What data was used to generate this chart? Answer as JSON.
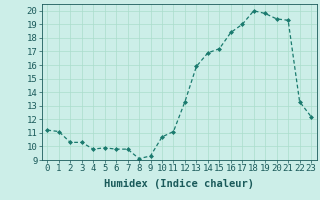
{
  "x": [
    0,
    1,
    2,
    3,
    4,
    5,
    6,
    7,
    8,
    9,
    10,
    11,
    12,
    13,
    14,
    15,
    16,
    17,
    18,
    19,
    20,
    21,
    22,
    23
  ],
  "y": [
    11.2,
    11.1,
    10.3,
    10.3,
    9.8,
    9.9,
    9.8,
    9.8,
    9.1,
    9.3,
    10.7,
    11.1,
    13.3,
    15.9,
    16.9,
    17.2,
    18.4,
    19.0,
    20.0,
    19.8,
    19.4,
    19.3,
    13.3,
    12.2
  ],
  "title": "",
  "xlabel": "Humidex (Indice chaleur)",
  "ylabel": "",
  "xlim": [
    -0.5,
    23.5
  ],
  "ylim": [
    9,
    20.5
  ],
  "yticks": [
    9,
    10,
    11,
    12,
    13,
    14,
    15,
    16,
    17,
    18,
    19,
    20
  ],
  "xticks": [
    0,
    1,
    2,
    3,
    4,
    5,
    6,
    7,
    8,
    9,
    10,
    11,
    12,
    13,
    14,
    15,
    16,
    17,
    18,
    19,
    20,
    21,
    22,
    23
  ],
  "line_color": "#1a7a6e",
  "marker_color": "#1a7a6e",
  "bg_color": "#cceee8",
  "grid_color": "#aaddcc",
  "fig_bg_color": "#cceee8",
  "font_color": "#1a5a5a",
  "xlabel_fontsize": 7.5,
  "tick_fontsize": 6.5
}
